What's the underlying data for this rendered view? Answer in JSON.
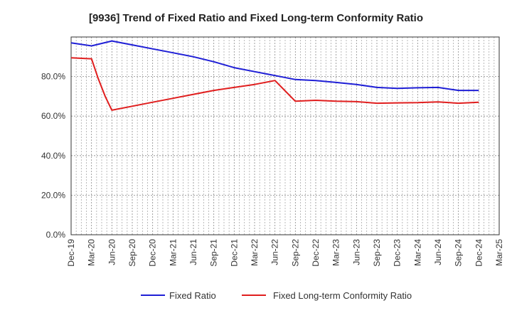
{
  "chart_data": {
    "type": "line",
    "title": "[9936]  Trend of Fixed Ratio and Fixed Long-term Conformity Ratio",
    "xlabel": "",
    "ylabel": "",
    "ylim": [
      0,
      100
    ],
    "y_ticks": [
      "0.0%",
      "20.0%",
      "40.0%",
      "60.0%",
      "80.0%"
    ],
    "y_tick_values": [
      0,
      20,
      40,
      60,
      80
    ],
    "x_tick_labels": [
      "Dec-19",
      "Mar-20",
      "Jun-20",
      "Sep-20",
      "Dec-20",
      "Mar-21",
      "Jun-21",
      "Sep-21",
      "Dec-21",
      "Mar-22",
      "Jun-22",
      "Sep-22",
      "Dec-22",
      "Mar-23",
      "Jun-23",
      "Sep-23",
      "Dec-23",
      "Mar-24",
      "Jun-24",
      "Sep-24",
      "Dec-24",
      "Mar-25"
    ],
    "grid": true,
    "legend_position": "bottom",
    "series": [
      {
        "name": "Fixed Ratio",
        "color": "#1f1fd6",
        "points": [
          [
            0,
            97.0
          ],
          [
            1,
            95.5
          ],
          [
            2,
            98.0
          ],
          [
            3,
            96.0
          ],
          [
            4,
            94.0
          ],
          [
            5,
            92.0
          ],
          [
            6,
            90.0
          ],
          [
            7,
            87.5
          ],
          [
            8,
            84.5
          ],
          [
            9,
            82.5
          ],
          [
            10,
            80.5
          ],
          [
            11,
            78.5
          ],
          [
            12,
            78.0
          ],
          [
            13,
            77.0
          ],
          [
            14,
            76.0
          ],
          [
            15,
            74.5
          ],
          [
            16,
            74.0
          ],
          [
            17,
            74.3
          ],
          [
            18,
            74.5
          ],
          [
            19,
            73.0
          ],
          [
            20,
            73.0
          ]
        ]
      },
      {
        "name": "Fixed Long-term Conformity Ratio",
        "color": "#e01e1e",
        "points": [
          [
            0,
            89.5
          ],
          [
            1,
            89.0
          ],
          [
            1.33,
            79.0
          ],
          [
            1.67,
            70.0
          ],
          [
            2,
            63.0
          ],
          [
            3,
            65.0
          ],
          [
            4,
            67.0
          ],
          [
            5,
            69.0
          ],
          [
            6,
            71.0
          ],
          [
            7,
            73.0
          ],
          [
            8,
            74.5
          ],
          [
            9,
            76.0
          ],
          [
            10,
            78.0
          ],
          [
            11,
            67.5
          ],
          [
            12,
            68.0
          ],
          [
            13,
            67.5
          ],
          [
            14,
            67.3
          ],
          [
            15,
            66.5
          ],
          [
            16,
            66.7
          ],
          [
            17,
            66.8
          ],
          [
            18,
            67.2
          ],
          [
            19,
            66.5
          ],
          [
            20,
            67.0
          ]
        ]
      }
    ]
  }
}
